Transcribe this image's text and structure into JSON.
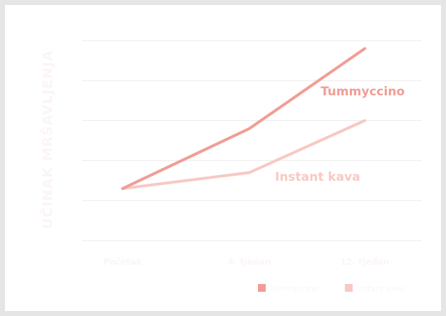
{
  "chart_data": {
    "type": "line",
    "categories": [
      "Početak",
      "4. tjedan",
      "12. tjedan"
    ],
    "ylabel": "UČINAK MRŠAVLJENJA",
    "ylim": [
      0,
      5
    ],
    "grid": true,
    "legend_position": "bottom-right",
    "series": [
      {
        "name": "Tummyccino",
        "values": [
          1.3,
          2.8,
          4.8
        ],
        "color": "#f09e95"
      },
      {
        "name": "Instant kava",
        "values": [
          1.3,
          1.7,
          3.0
        ],
        "color": "#f7c9c3"
      }
    ],
    "annotations": [
      "Tummyccino",
      "Instant kava"
    ]
  }
}
